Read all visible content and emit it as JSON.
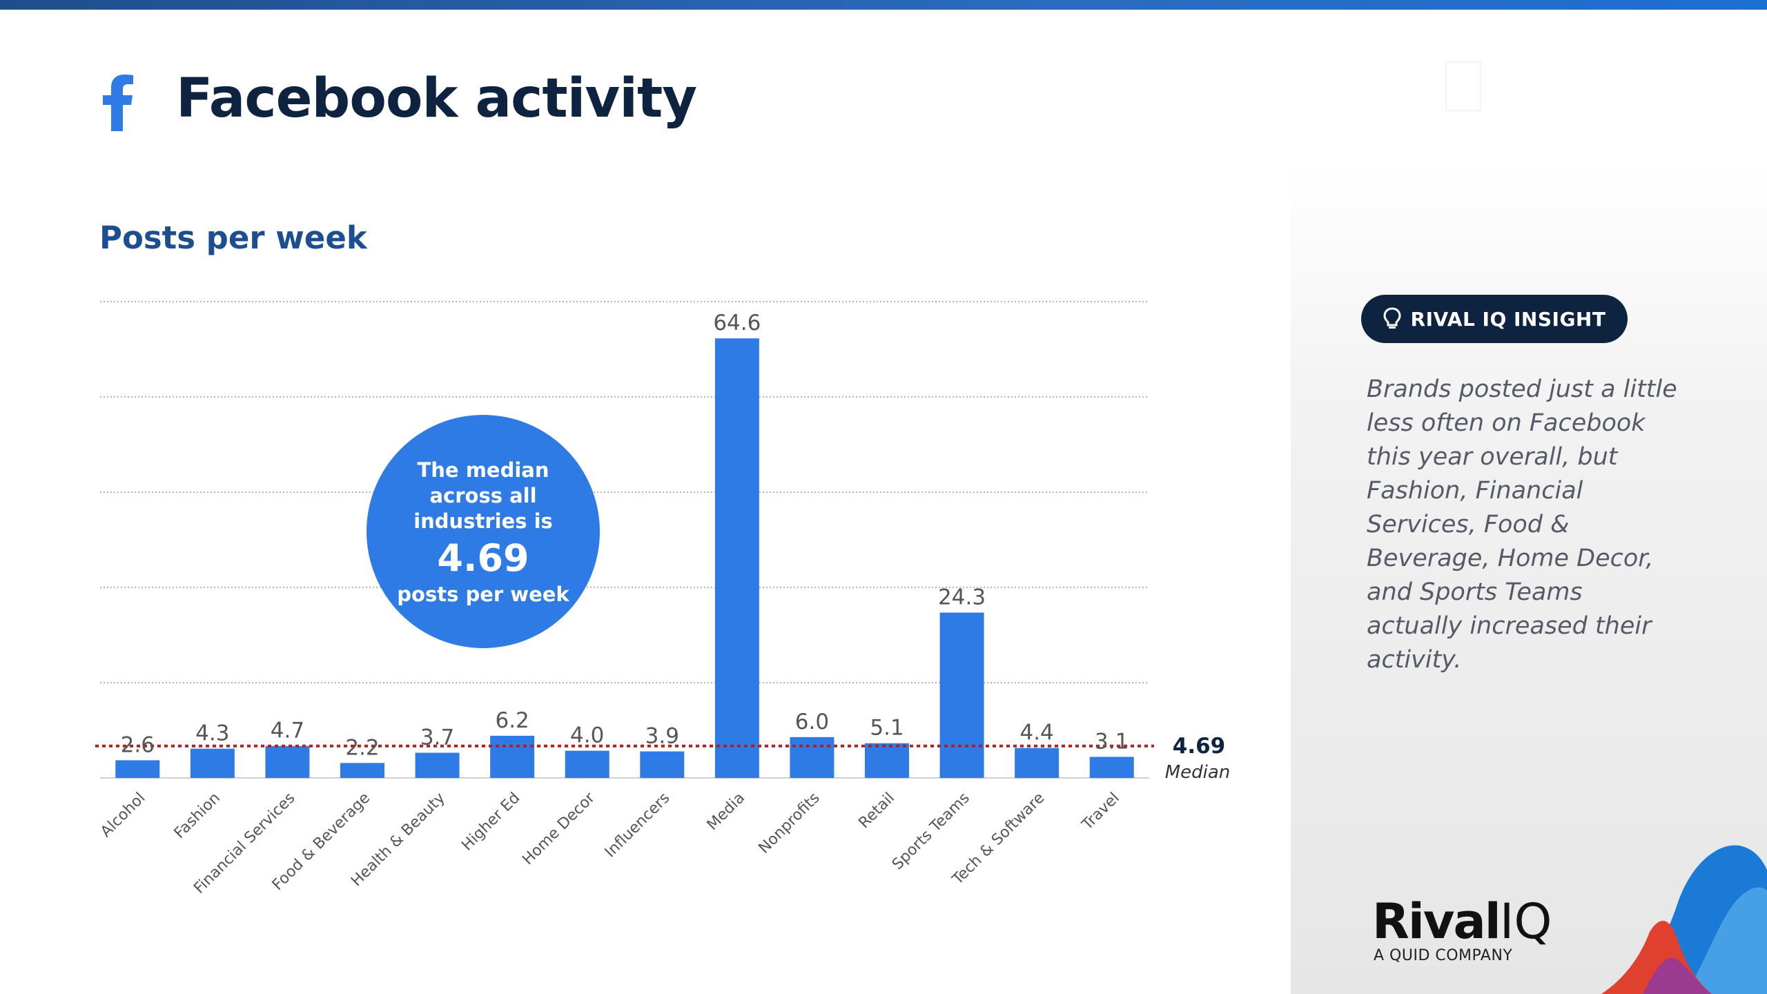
{
  "header": {
    "title": "Facebook activity",
    "icon": "facebook-f-icon"
  },
  "chart_data": {
    "type": "bar",
    "title": "Posts per week",
    "categories": [
      "Alcohol",
      "Fashion",
      "Financial Services",
      "Food & Beverage",
      "Health & Beauty",
      "Higher Ed",
      "Home Decor",
      "Influencers",
      "Media",
      "Nonprofits",
      "Retail",
      "Sports Teams",
      "Tech & Software",
      "Travel"
    ],
    "values": [
      2.6,
      4.3,
      4.7,
      2.2,
      3.7,
      6.2,
      4.0,
      3.9,
      64.6,
      6.0,
      5.1,
      24.3,
      4.4,
      3.1
    ],
    "value_labels": [
      "2.6",
      "4.3",
      "4.7",
      "2.2",
      "3.7",
      "6.2",
      "4.0",
      "3.9",
      "64.6",
      "6.0",
      "5.1",
      "24.3",
      "4.4",
      "3.1"
    ],
    "ylim": [
      0,
      70
    ],
    "grid": true,
    "bar_color": "#2e7be6",
    "median": {
      "value": 4.69,
      "value_label": "4.69",
      "label": "Median",
      "color": "#b81d1d"
    }
  },
  "median_callout": {
    "line1": "The median across all industries is",
    "value": "4.69",
    "line3": "posts per week"
  },
  "insight": {
    "badge": "RIVAL IQ INSIGHT",
    "text": "Brands posted just a little less often on Facebook this year overall, but Fashion, Financial Services, Food & Beverage, Home Decor, and Sports Teams actually increased their activity."
  },
  "brand": {
    "name": "Rival",
    "name_suffix": "IQ",
    "tagline": "A QUID COMPANY"
  },
  "colors": {
    "navy": "#0d2340",
    "accent_blue": "#2e7be6",
    "subtitle_blue": "#1d4e8f"
  }
}
